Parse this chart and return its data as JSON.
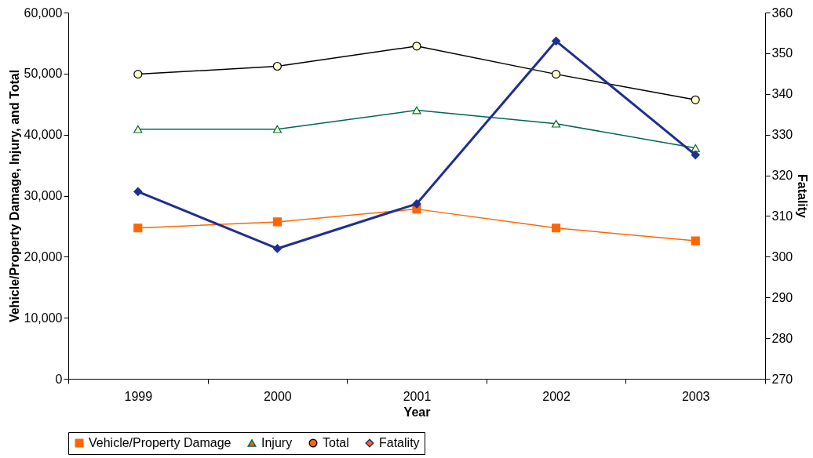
{
  "chart_data": {
    "type": "line",
    "xlabel": "Year",
    "ylabel": "Vehicle/Property Damage, Injury, and Total",
    "y2label": "Fatality",
    "categories": [
      "1999",
      "2000",
      "2001",
      "2002",
      "2003"
    ],
    "series": [
      {
        "name": "Vehicle/Property Damage",
        "color": "#ff6600",
        "marker": "square",
        "values": [
          24700,
          25700,
          27800,
          24700,
          22600
        ]
      },
      {
        "name": "Injury",
        "color": "#006655",
        "marker": "triangle",
        "values": [
          40900,
          40900,
          44000,
          41800,
          37800
        ]
      },
      {
        "name": "Total",
        "color": "#000000",
        "marker": "circle",
        "values": [
          49900,
          51200,
          54500,
          49900,
          45700
        ]
      },
      {
        "name": "Fatality",
        "color": "#1f2f8f",
        "marker": "diamond",
        "axis": "y2",
        "values": [
          316,
          302,
          313,
          353,
          325
        ]
      }
    ],
    "ylim": [
      0,
      60000
    ],
    "yticks": [
      0,
      {
        "value": 10000,
        "label": "10,000"
      },
      {
        "value": 20000,
        "label": "20,000"
      },
      {
        "value": 30000,
        "label": "30,000"
      },
      {
        "value": 40000,
        "label": "40,000"
      },
      {
        "value": 50000,
        "label": "50,000"
      },
      {
        "value": 60000,
        "label": "60,000"
      }
    ],
    "y2lim": [
      270,
      360
    ],
    "y2ticks": [
      270,
      280,
      290,
      300,
      310,
      320,
      330,
      340,
      350,
      360
    ],
    "grid": false,
    "legend": "bottom"
  }
}
